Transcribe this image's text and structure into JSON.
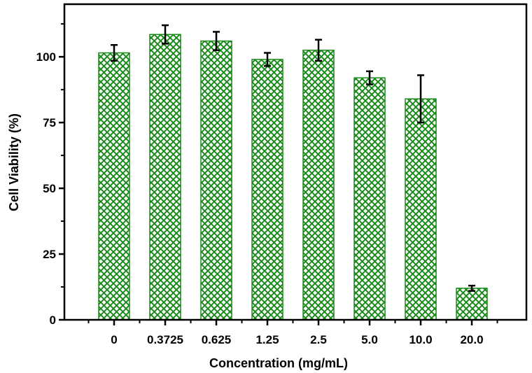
{
  "chart_data": {
    "type": "bar",
    "title": "",
    "xlabel": "Concentration (mg/mL)",
    "ylabel": "Cell Viability (%)",
    "categories": [
      "0",
      "0.3725",
      "0.625",
      "1.25",
      "2.5",
      "5.0",
      "10.0",
      "20.0"
    ],
    "values": [
      101.5,
      108.5,
      106,
      99,
      102.5,
      92,
      84,
      12
    ],
    "errors": [
      3,
      3.5,
      3.5,
      2.5,
      4,
      2.5,
      9,
      1
    ],
    "ylim": [
      0,
      120
    ],
    "yticks": [
      0,
      25,
      50,
      75,
      100
    ],
    "bar_color": "#1a8a1a",
    "bar_fill": "#ffffff",
    "grid": false,
    "legend": "none"
  }
}
